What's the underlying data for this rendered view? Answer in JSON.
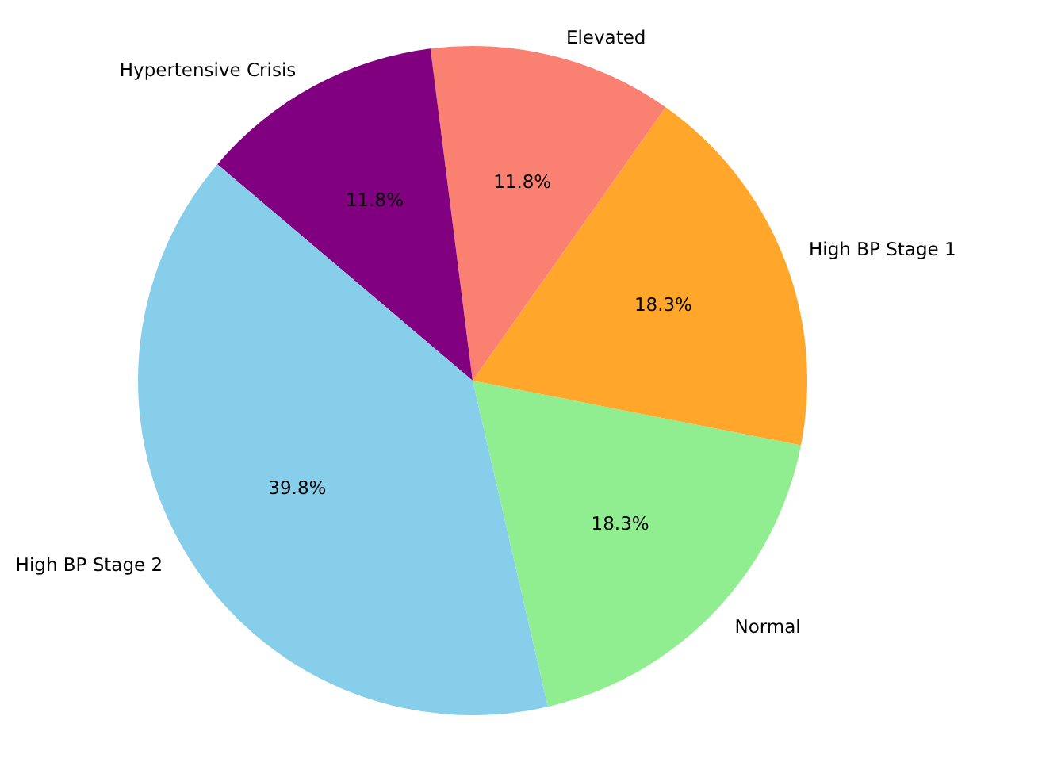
{
  "chart_data": {
    "type": "pie",
    "categories": [
      "Normal",
      "High BP Stage 1",
      "Elevated",
      "Hypertensive Crisis",
      "High BP Stage 2"
    ],
    "values": [
      18.3,
      18.3,
      11.8,
      11.8,
      39.8
    ],
    "colors": [
      "#90ee90",
      "#ffa62b",
      "#fa8072",
      "#800080",
      "#87ceeb"
    ],
    "value_labels": [
      "18.3%",
      "18.3%",
      "11.8%",
      "11.8%",
      "39.8%"
    ]
  }
}
